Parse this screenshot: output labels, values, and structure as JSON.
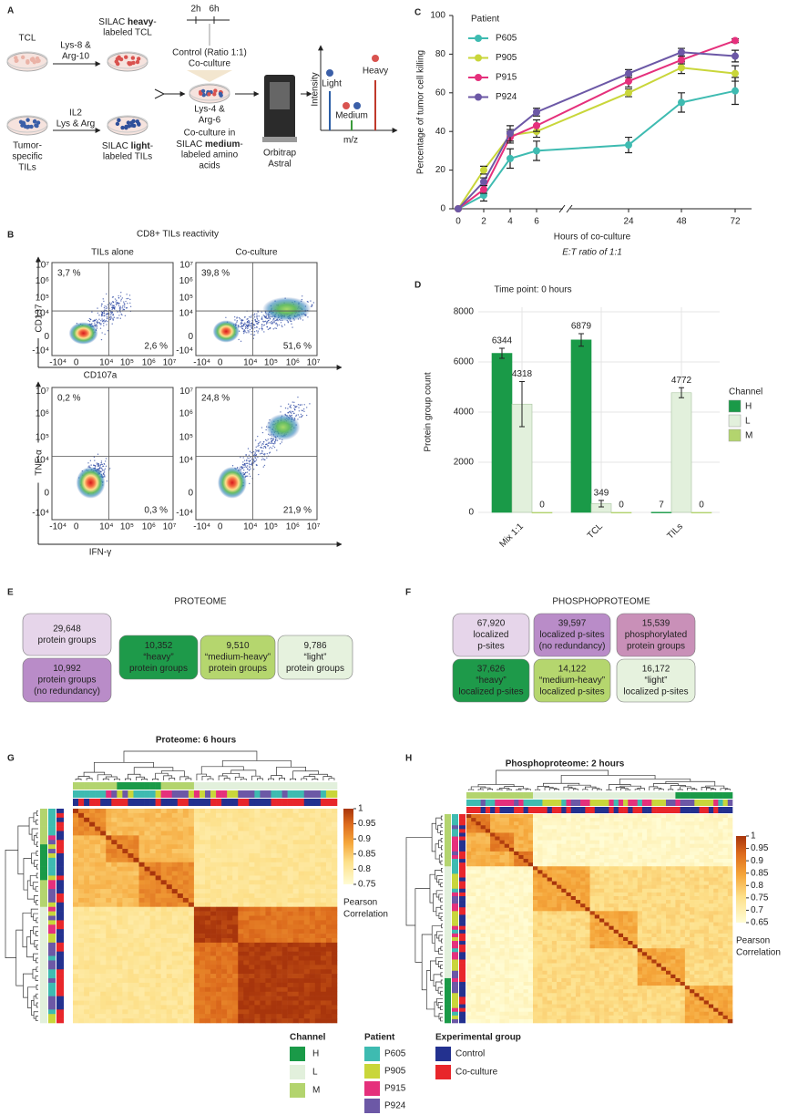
{
  "panel_labels": {
    "a": "A",
    "b": "B",
    "c": "C",
    "d": "D",
    "e": "E",
    "f": "F",
    "g": "G",
    "h": "H"
  },
  "schematic": {
    "tcl": "TCL",
    "heavy_aa": [
      "Lys-8 &",
      "Arg-10"
    ],
    "heavy_tcl": [
      "SILAC ",
      "heavy",
      "-",
      "labeled TCL"
    ],
    "tils": [
      "Tumor-",
      "specific",
      "TILs"
    ],
    "il2": "IL2",
    "light_aa": "Lys & Arg",
    "light_tils": [
      "SILAC ",
      "light",
      "-",
      "labeled TILs"
    ],
    "times": [
      "2h",
      "6h"
    ],
    "control": [
      "Control (Ratio 1:1)",
      "Co-culture"
    ],
    "medium_aa": [
      "Lys-4 &",
      "Arg-6"
    ],
    "coculture": [
      "Co-culture in",
      "SILAC ",
      "medium",
      "-",
      "labeled amino",
      "acids"
    ],
    "instrument": [
      "Orbitrap",
      "Astral"
    ],
    "spectrum": {
      "y_label": "Intensity",
      "x_label": "m/z",
      "peaks": [
        "Light",
        "Medium",
        "Heavy"
      ]
    }
  },
  "flow": {
    "title": "CD8+ TILs reactivity",
    "columns": [
      "TILs alone",
      "Co-culture"
    ],
    "rows": [
      {
        "y_label": "CD137",
        "x_label": "CD107a",
        "gates": [
          [
            "3,7 %",
            "2,6 %"
          ],
          [
            "39,8 %",
            "51,6 %"
          ]
        ]
      },
      {
        "y_label": "TNF-α",
        "x_label": "IFN-γ",
        "gates": [
          [
            "0,2 %",
            "0,3 %"
          ],
          [
            "24,8 %",
            "21,9 %"
          ]
        ]
      }
    ],
    "ticks": [
      "-10⁴",
      "0",
      "10⁴",
      "10⁵",
      "10⁶",
      "10⁷"
    ]
  },
  "chart_data": [
    {
      "type": "line",
      "y_label": "Percentage of tumor cell killing",
      "x_label": "Hours of co-culture",
      "subtitle": "E:T ratio of 1:1",
      "legend_title": "Patient",
      "categories": [
        "0",
        "2",
        "4",
        "6",
        "24",
        "48",
        "72"
      ],
      "series": [
        {
          "name": "P605",
          "color": "#3ebbb1",
          "values": [
            0,
            7,
            26,
            30,
            33,
            55,
            61
          ],
          "errors": [
            0,
            3,
            5,
            5,
            4,
            5,
            7
          ]
        },
        {
          "name": "P905",
          "color": "#c9d63a",
          "values": [
            0,
            20,
            38,
            40,
            60,
            73,
            70
          ],
          "errors": [
            0,
            2,
            3,
            3,
            2,
            3,
            4
          ]
        },
        {
          "name": "P915",
          "color": "#e5307c",
          "values": [
            0,
            10,
            37,
            43,
            66,
            77,
            87
          ],
          "errors": [
            0,
            2,
            3,
            3,
            3,
            2,
            1
          ]
        },
        {
          "name": "P924",
          "color": "#6c58a6",
          "values": [
            0,
            14,
            39,
            50,
            70,
            81,
            79
          ],
          "errors": [
            0,
            2,
            4,
            2,
            2,
            2,
            3
          ]
        }
      ],
      "ylim": [
        0,
        100
      ],
      "yticks": [
        0,
        20,
        40,
        60,
        80,
        100
      ]
    },
    {
      "type": "bar",
      "title": "Time point: 0 hours",
      "y_label": "Protein group count",
      "legend_title": "Channel",
      "categories": [
        "Mix 1:1",
        "TCL",
        "TILs"
      ],
      "series": [
        {
          "name": "H",
          "color": "#1a9a48",
          "values": [
            6344,
            6879,
            7
          ],
          "errors": [
            200,
            250,
            0
          ]
        },
        {
          "name": "L",
          "color": "#e2f0dc",
          "values": [
            4318,
            349,
            4772
          ],
          "errors": [
            900,
            130,
            200
          ]
        },
        {
          "name": "M",
          "color": "#b3d46e",
          "values": [
            0,
            0,
            0
          ],
          "errors": [
            0,
            0,
            0
          ]
        }
      ],
      "ylim": [
        0,
        8000
      ],
      "yticks": [
        0,
        2000,
        4000,
        6000,
        8000
      ],
      "grid": true
    }
  ],
  "proteome": {
    "title": "PROTEOME",
    "boxes": [
      [
        "29,648",
        "protein groups"
      ],
      [
        "10,992",
        "protein groups",
        "(no redundancy)"
      ],
      [
        "10,352",
        "“heavy”",
        "protein groups"
      ],
      [
        "9,510",
        "“medium-heavy”",
        "protein groups"
      ],
      [
        "9,786",
        "“light”",
        "protein groups"
      ]
    ]
  },
  "phosphoproteome": {
    "title": "PHOSPHOPROTEOME",
    "boxes": [
      [
        "67,920",
        "localized",
        "p-sites"
      ],
      [
        "39,597",
        "localized p-sites",
        "(no redundancy)"
      ],
      [
        "15,539",
        "phosphorylated",
        "protein groups"
      ],
      [
        "37,626",
        "“heavy”",
        "localized p-sites"
      ],
      [
        "14,122",
        "“medium-heavy”",
        "localized p-sites"
      ],
      [
        "16,172",
        "“light”",
        "localized p-sites"
      ]
    ]
  },
  "heatmaps": [
    {
      "title": "Proteome: 6 hours",
      "colorbar_ticks": [
        1,
        0.95,
        0.9,
        0.85,
        0.8,
        0.75
      ],
      "colorbar_label": [
        "Pearson",
        "Correlation"
      ]
    },
    {
      "title": "Phosphoproteome: 2 hours",
      "colorbar_ticks": [
        1,
        0.95,
        0.9,
        0.85,
        0.8,
        0.75,
        0.7,
        0.65
      ],
      "colorbar_label": [
        "Pearson",
        "Correlation"
      ]
    }
  ],
  "legend": {
    "groups": [
      {
        "title": "Channel",
        "items": [
          {
            "label": "H",
            "color": "#1a9a48"
          },
          {
            "label": "L",
            "color": "#e2f0dc"
          },
          {
            "label": "M",
            "color": "#b3d46e"
          }
        ]
      },
      {
        "title": "Patient",
        "items": [
          {
            "label": "P605",
            "color": "#3ebbb1"
          },
          {
            "label": "P905",
            "color": "#c9d63a"
          },
          {
            "label": "P915",
            "color": "#e5307c"
          },
          {
            "label": "P924",
            "color": "#6c58a6"
          }
        ]
      },
      {
        "title": "Experimental group",
        "items": [
          {
            "label": "Control",
            "color": "#23318f"
          },
          {
            "label": "Co-culture",
            "color": "#e8262b"
          }
        ]
      }
    ]
  }
}
